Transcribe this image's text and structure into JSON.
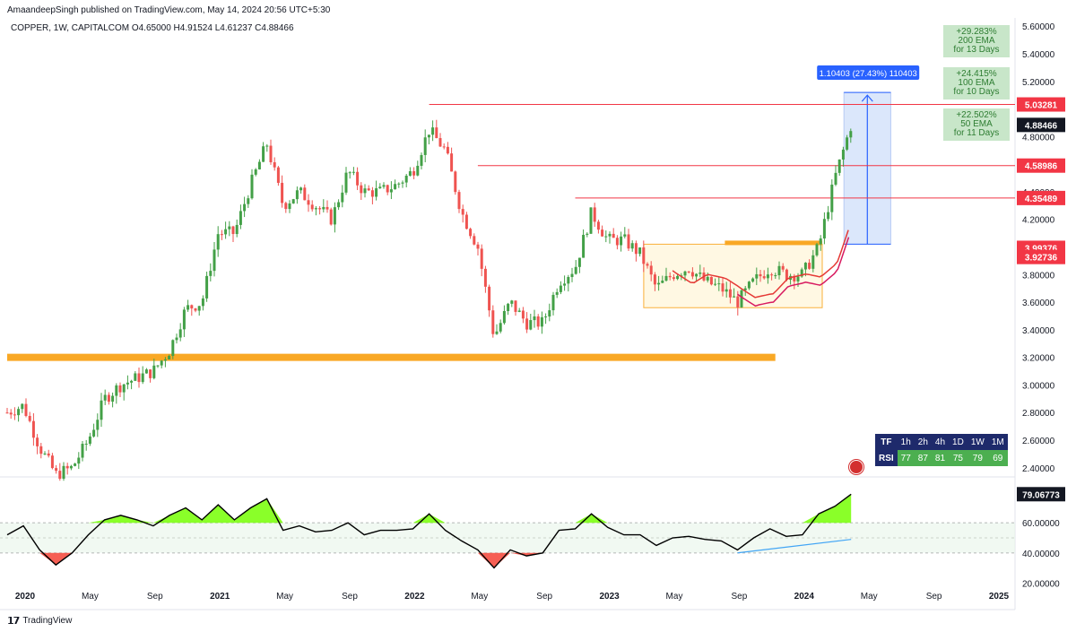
{
  "header": {
    "publisher": "AmaandeepSingh published on TradingView.com, May 14, 2024 20:56 UTC+5:30",
    "symbol_line": "COPPER, 1W, CAPITALCOM  O4.65000  H4.91524  L4.61237  C4.88466"
  },
  "footer": {
    "brand": "TradingView"
  },
  "colors": {
    "up": "#26a69a",
    "up_candle": "#43a047",
    "down": "#ef5350",
    "support_band": "#f9a825",
    "measure_fill": "#dbe7fb",
    "measure_line": "#2962ff",
    "rsi_line": "#000000",
    "rsi_overbought_fill": "#76ff03",
    "rsi_oversold_fill": "#f44336",
    "ema_fast": "#e53935",
    "ema_slow": "#d81b60"
  },
  "chart_data": {
    "type": "candlestick",
    "timeframe": "1W",
    "x_tick_labels": [
      "2020",
      "May",
      "Sep",
      "2021",
      "May",
      "Sep",
      "2022",
      "May",
      "Sep",
      "2023",
      "May",
      "Sep",
      "2024",
      "May",
      "Sep",
      "2025"
    ],
    "y_tick_labels": [
      "5.60000",
      "5.40000",
      "5.20000",
      "4.80000",
      "4.60000",
      "4.40000",
      "4.20000",
      "3.80000",
      "3.60000",
      "3.40000",
      "3.20000",
      "3.00000",
      "2.80000",
      "2.60000",
      "2.40000"
    ],
    "ylim": [
      2.34,
      5.66
    ],
    "price_labels": [
      {
        "value": "5.03281",
        "price": 5.03281,
        "color": "#f23645"
      },
      {
        "value": "4.88466",
        "price": 4.88466,
        "color": "#131722"
      },
      {
        "value": "4.58986",
        "price": 4.58986,
        "color": "#f23645"
      },
      {
        "value": "4.35489",
        "price": 4.35489,
        "color": "#f23645"
      },
      {
        "value": "3.99376",
        "price": 3.99376,
        "color": "#f23645"
      },
      {
        "value": "3.92736",
        "price": 3.92736,
        "color": "#f23645"
      }
    ],
    "horizontal_levels": [
      {
        "price": 5.03281,
        "from": "2022-03",
        "to": "2024-05"
      },
      {
        "price": 4.58986,
        "from": "2022-06",
        "to": "2024-05"
      },
      {
        "price": 4.35489,
        "from": "2022-12",
        "to": "2024-05"
      },
      {
        "price": 3.2,
        "from": "2020-01",
        "to": "2023-12",
        "type": "support-band"
      }
    ],
    "consolidation_box": {
      "from": "2023-04",
      "to": "2024-03",
      "price_high": 4.02,
      "price_low": 3.56
    },
    "measure": {
      "label": "1.10403 (27.43%) 110403",
      "from_price": 4.02,
      "to_price": 5.12
    },
    "ema_labels": [
      {
        "pct": "+29.283%",
        "name": "200 EMA",
        "days": "for 13 Days"
      },
      {
        "pct": "+24.415%",
        "name": "100 EMA",
        "days": "for 10 Days"
      },
      {
        "pct": "+22.502%",
        "name": "50 EMA",
        "days": "for 11 Days"
      }
    ],
    "price_path": [
      [
        "2020-01",
        2.8
      ],
      [
        "2020-02",
        2.85
      ],
      [
        "2020-03",
        2.55
      ],
      [
        "2020-04",
        2.35
      ],
      [
        "2020-05",
        2.4
      ],
      [
        "2020-06",
        2.6
      ],
      [
        "2020-07",
        2.9
      ],
      [
        "2020-08",
        3.0
      ],
      [
        "2020-09",
        3.05
      ],
      [
        "2020-10",
        3.1
      ],
      [
        "2020-11",
        3.25
      ],
      [
        "2020-12",
        3.55
      ],
      [
        "2021-01",
        3.6
      ],
      [
        "2021-02",
        4.1
      ],
      [
        "2021-03",
        4.1
      ],
      [
        "2021-04",
        4.45
      ],
      [
        "2021-05",
        4.75
      ],
      [
        "2021-06",
        4.3
      ],
      [
        "2021-07",
        4.4
      ],
      [
        "2021-08",
        4.3
      ],
      [
        "2021-09",
        4.2
      ],
      [
        "2021-10",
        4.55
      ],
      [
        "2021-11",
        4.4
      ],
      [
        "2021-12",
        4.4
      ],
      [
        "2022-01",
        4.45
      ],
      [
        "2022-02",
        4.55
      ],
      [
        "2022-03",
        4.85
      ],
      [
        "2022-04",
        4.7
      ],
      [
        "2022-05",
        4.25
      ],
      [
        "2022-06",
        4.0
      ],
      [
        "2022-07",
        3.35
      ],
      [
        "2022-08",
        3.6
      ],
      [
        "2022-09",
        3.45
      ],
      [
        "2022-10",
        3.45
      ],
      [
        "2022-11",
        3.75
      ],
      [
        "2022-12",
        3.85
      ],
      [
        "2023-01",
        4.25
      ],
      [
        "2023-02",
        4.05
      ],
      [
        "2023-03",
        4.05
      ],
      [
        "2023-04",
        3.95
      ],
      [
        "2023-05",
        3.7
      ],
      [
        "2023-06",
        3.8
      ],
      [
        "2023-07",
        3.85
      ],
      [
        "2023-08",
        3.75
      ],
      [
        "2023-09",
        3.7
      ],
      [
        "2023-10",
        3.6
      ],
      [
        "2023-11",
        3.75
      ],
      [
        "2023-12",
        3.85
      ],
      [
        "2024-01",
        3.8
      ],
      [
        "2024-02",
        3.8
      ],
      [
        "2024-03",
        4.0
      ],
      [
        "2024-04",
        4.5
      ],
      [
        "2024-05",
        4.88466
      ]
    ],
    "rsi": {
      "value_label": "79.06773",
      "value": 79.06773,
      "y_tick_labels": [
        "60.00000",
        "40.00000",
        "20.00000"
      ],
      "levels": [
        60,
        50,
        40
      ],
      "ylim": [
        13,
        87
      ],
      "path": [
        [
          "2020-01",
          52
        ],
        [
          "2020-02",
          58
        ],
        [
          "2020-03",
          42
        ],
        [
          "2020-04",
          32
        ],
        [
          "2020-05",
          40
        ],
        [
          "2020-06",
          52
        ],
        [
          "2020-07",
          62
        ],
        [
          "2020-08",
          65
        ],
        [
          "2020-09",
          62
        ],
        [
          "2020-10",
          58
        ],
        [
          "2020-11",
          65
        ],
        [
          "2020-12",
          70
        ],
        [
          "2021-01",
          62
        ],
        [
          "2021-02",
          72
        ],
        [
          "2021-03",
          62
        ],
        [
          "2021-04",
          70
        ],
        [
          "2021-05",
          76
        ],
        [
          "2021-06",
          55
        ],
        [
          "2021-07",
          58
        ],
        [
          "2021-08",
          54
        ],
        [
          "2021-09",
          55
        ],
        [
          "2021-10",
          60
        ],
        [
          "2021-11",
          52
        ],
        [
          "2021-12",
          55
        ],
        [
          "2022-01",
          55
        ],
        [
          "2022-02",
          56
        ],
        [
          "2022-03",
          66
        ],
        [
          "2022-04",
          55
        ],
        [
          "2022-05",
          48
        ],
        [
          "2022-06",
          42
        ],
        [
          "2022-07",
          30
        ],
        [
          "2022-08",
          42
        ],
        [
          "2022-09",
          38
        ],
        [
          "2022-10",
          40
        ],
        [
          "2022-11",
          55
        ],
        [
          "2022-12",
          56
        ],
        [
          "2023-01",
          66
        ],
        [
          "2023-02",
          57
        ],
        [
          "2023-03",
          52
        ],
        [
          "2023-04",
          52
        ],
        [
          "2023-05",
          45
        ],
        [
          "2023-06",
          50
        ],
        [
          "2023-07",
          51
        ],
        [
          "2023-08",
          49
        ],
        [
          "2023-09",
          48
        ],
        [
          "2023-10",
          42
        ],
        [
          "2023-11",
          50
        ],
        [
          "2023-12",
          56
        ],
        [
          "2024-01",
          51
        ],
        [
          "2024-02",
          52
        ],
        [
          "2024-03",
          66
        ],
        [
          "2024-04",
          71
        ],
        [
          "2024-05",
          79.06773
        ]
      ],
      "trendline": [
        [
          "2023-10",
          40
        ],
        [
          "2024-05",
          49
        ]
      ]
    }
  },
  "mtf_table": {
    "headers": [
      "TF",
      "1h",
      "2h",
      "4h",
      "1D",
      "1W",
      "1M"
    ],
    "row_label": "RSI",
    "values": [
      "77",
      "87",
      "81",
      "75",
      "79",
      "69"
    ]
  }
}
